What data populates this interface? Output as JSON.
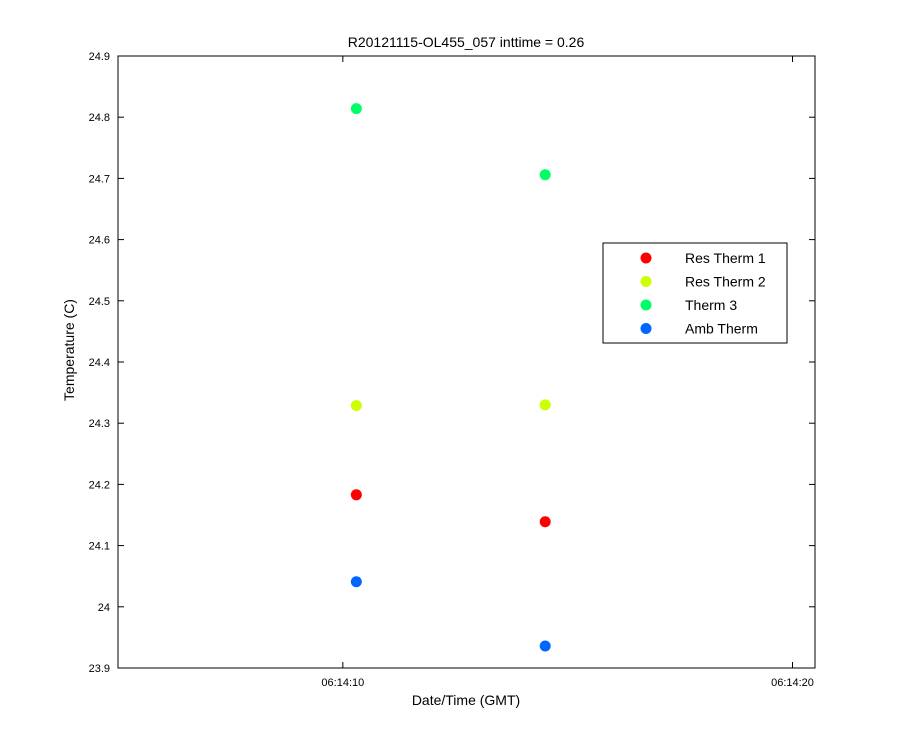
{
  "chart_data": {
    "type": "scatter",
    "title": "R20121115-OL455_057 inttime = 0.26",
    "xlabel": "Date/Time (GMT)",
    "ylabel": "Temperature (C)",
    "xlim": [
      "06:14:05",
      "06:14:20.5"
    ],
    "ylim": [
      23.9,
      24.9
    ],
    "x_ticks": [
      {
        "value": "06:14:10",
        "label": "06:14:10"
      },
      {
        "value": "06:14:20",
        "label": "06:14:20"
      }
    ],
    "y_ticks": [
      {
        "value": 23.9,
        "label": "23.9"
      },
      {
        "value": 24.0,
        "label": "24"
      },
      {
        "value": 24.1,
        "label": "24.1"
      },
      {
        "value": 24.2,
        "label": "24.2"
      },
      {
        "value": 24.3,
        "label": "24.3"
      },
      {
        "value": 24.4,
        "label": "24.4"
      },
      {
        "value": 24.5,
        "label": "24.5"
      },
      {
        "value": 24.6,
        "label": "24.6"
      },
      {
        "value": 24.7,
        "label": "24.7"
      },
      {
        "value": 24.8,
        "label": "24.8"
      },
      {
        "value": 24.9,
        "label": "24.9"
      }
    ],
    "x": [
      "06:14:10.3",
      "06:14:14.5"
    ],
    "series": [
      {
        "name": "Res Therm 1",
        "color": "#ff0000",
        "values": [
          24.183,
          24.139
        ]
      },
      {
        "name": "Res Therm 2",
        "color": "#ccff00",
        "values": [
          24.329,
          24.33
        ]
      },
      {
        "name": "Therm 3",
        "color": "#00ff66",
        "values": [
          24.814,
          24.706
        ]
      },
      {
        "name": "Amb Therm",
        "color": "#0066ff",
        "values": [
          24.041,
          23.936
        ]
      }
    ],
    "grid": false,
    "legend_position": "right-middle"
  }
}
